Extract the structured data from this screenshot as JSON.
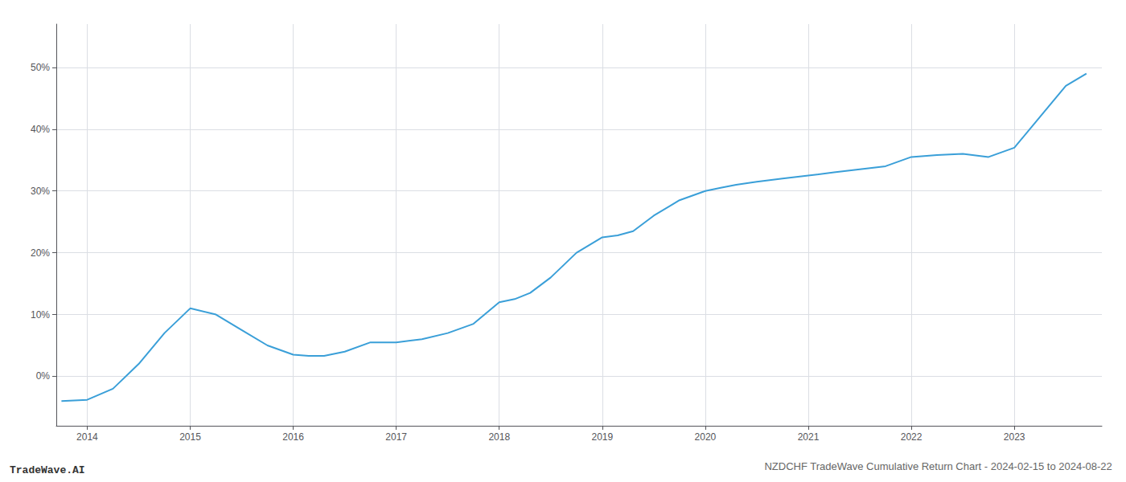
{
  "chart_data": {
    "type": "line",
    "title": "NZDCHF TradeWave Cumulative Return Chart - 2024-02-15 to 2024-08-22",
    "annotations": [
      "TradeWave.AI"
    ],
    "color": "#3a9fd8",
    "x": [
      2013.75,
      2014.0,
      2014.25,
      2014.5,
      2014.75,
      2015.0,
      2015.25,
      2015.5,
      2015.75,
      2016.0,
      2016.15,
      2016.3,
      2016.5,
      2016.75,
      2017.0,
      2017.25,
      2017.5,
      2017.75,
      2018.0,
      2018.15,
      2018.3,
      2018.5,
      2018.75,
      2019.0,
      2019.15,
      2019.3,
      2019.5,
      2019.75,
      2020.0,
      2020.15,
      2020.3,
      2020.5,
      2020.75,
      2021.0,
      2021.25,
      2021.5,
      2021.75,
      2022.0,
      2022.25,
      2022.5,
      2022.75,
      2023.0,
      2023.25,
      2023.5,
      2023.7
    ],
    "values": [
      -4.0,
      -3.8,
      -2.0,
      2.0,
      7.0,
      11.0,
      10.0,
      7.5,
      5.0,
      3.5,
      3.3,
      3.3,
      4.0,
      5.5,
      5.5,
      6.0,
      7.0,
      8.5,
      12.0,
      12.5,
      13.5,
      16.0,
      20.0,
      22.5,
      22.8,
      23.5,
      26.0,
      28.5,
      30.0,
      30.5,
      31.0,
      31.5,
      32.0,
      32.5,
      33.0,
      33.5,
      34.0,
      35.5,
      35.8,
      36.0,
      35.5,
      37.0,
      42.0,
      47.0,
      49.0
    ],
    "xlim": [
      2013.7,
      2023.85
    ],
    "ylim": [
      -8,
      57
    ],
    "xticks": [
      2014,
      2015,
      2016,
      2017,
      2018,
      2019,
      2020,
      2021,
      2022,
      2023
    ],
    "yticks": [
      {
        "value": 0,
        "label": "0%"
      },
      {
        "value": 10,
        "label": "10%"
      },
      {
        "value": 20,
        "label": "20%"
      },
      {
        "value": 30,
        "label": "30%"
      },
      {
        "value": 40,
        "label": "40%"
      },
      {
        "value": 50,
        "label": "50%"
      }
    ],
    "grid": true
  }
}
